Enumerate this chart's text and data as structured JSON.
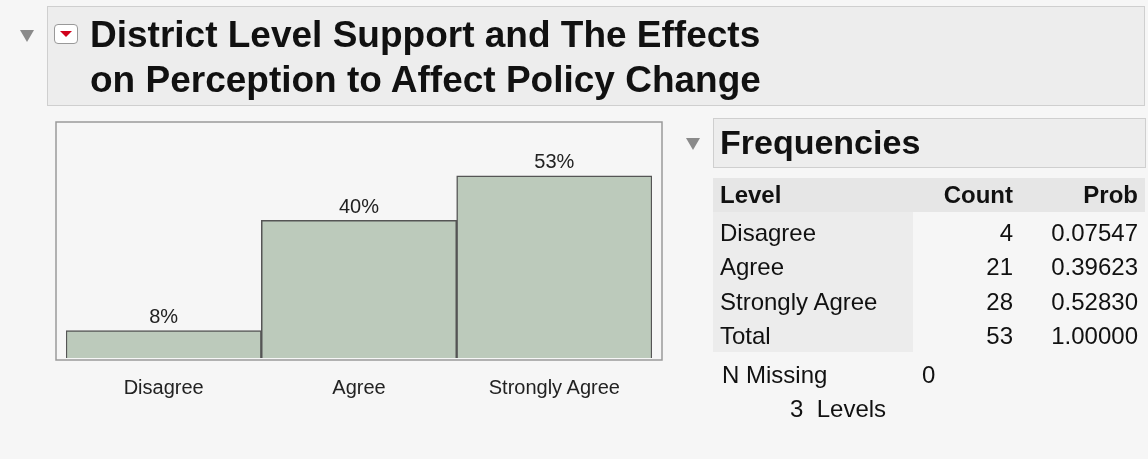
{
  "chart_data": [
    {
      "type": "bar",
      "title": "District Level Support and The Effects\non Perception to Affect Policy Change",
      "categories": [
        "Disagree",
        "Agree",
        "Strongly Agree"
      ],
      "values": [
        8,
        40,
        53
      ],
      "value_labels": [
        "8%",
        "40%",
        "53%"
      ],
      "color": "#bccabb"
    },
    {
      "type": "other",
      "title": "Frequencies",
      "annotations": [
        "Level",
        "Count",
        "Prob",
        "Disagree",
        "4",
        "0.07547",
        "Agree",
        "21",
        "0.39623",
        "Strongly Agree",
        "28",
        "0.52830",
        "Total",
        "53",
        "1.00000",
        "N Missing",
        "0",
        "3  Levels"
      ]
    }
  ]
}
